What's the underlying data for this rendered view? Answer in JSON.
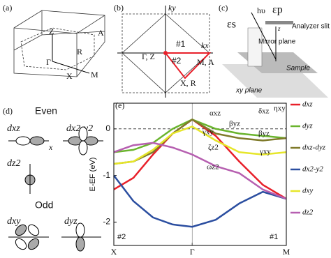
{
  "panels": {
    "a": {
      "label": "(a)",
      "points": [
        "Z",
        "A",
        "R",
        "Γ",
        "X",
        "M"
      ]
    },
    "b": {
      "label": "(b)",
      "axes": [
        "ky",
        "kx"
      ],
      "paths": [
        "#1",
        "#2"
      ],
      "points": [
        "Γ, Z",
        "M, A",
        "X, R"
      ]
    },
    "c": {
      "label": "(c)",
      "texts": [
        "hυ",
        "εp",
        "εs",
        "z",
        "Analyzer slit",
        "Mirror plane",
        "Sample",
        "xy plane"
      ]
    },
    "d": {
      "label": "(d)",
      "even": "Even",
      "odd": "Odd",
      "orbitals": [
        "dxz",
        "dx2-y2",
        "dz2",
        "dxy",
        "dyz"
      ],
      "axis": "x"
    }
  },
  "chart_data": {
    "type": "line",
    "panel_label": "(e)",
    "ylabel": "E-EF (eV)",
    "x": [
      0,
      0.25,
      0.5,
      0.75,
      1,
      1.3,
      1.6,
      1.9,
      2.2
    ],
    "xlim": [
      0,
      2.2
    ],
    "xticks": [
      {
        "value": 0,
        "label": "X"
      },
      {
        "value": 1,
        "label": "Γ"
      },
      {
        "value": 2.2,
        "label": "M"
      }
    ],
    "ylim": [
      -2.5,
      0.55
    ],
    "yticks": [
      -2,
      -1,
      0
    ],
    "reference_lines": {
      "y": 0,
      "x": 1
    },
    "series": [
      {
        "name": "dxz",
        "color": "#e8202a",
        "values": [
          -1.3,
          -1.05,
          -0.55,
          -0.1,
          0.2,
          -0.15,
          -0.7,
          -1.2,
          -1.5
        ]
      },
      {
        "name": "dyz",
        "color": "#6ab42d",
        "values": [
          -0.5,
          -0.45,
          -0.3,
          0.0,
          0.2,
          0.0,
          -0.1,
          -0.15,
          -0.2
        ]
      },
      {
        "name": "dxz-dyz",
        "color": "#7f7a2a",
        "values": [
          -0.75,
          -0.7,
          -0.5,
          -0.1,
          0.2,
          -0.1,
          -0.2,
          -0.25,
          -0.2
        ]
      },
      {
        "name": "dx2-y2",
        "color": "#2b4ea0",
        "values": [
          -1.0,
          -1.55,
          -1.9,
          -2.05,
          -2.1,
          -1.95,
          -1.6,
          -1.35,
          -1.5
        ]
      },
      {
        "name": "dxy",
        "color": "#e6e62a",
        "values": [
          -0.75,
          -0.7,
          -0.45,
          -0.1,
          0.05,
          -0.25,
          -0.5,
          -0.55,
          -0.5
        ]
      },
      {
        "name": "dz2",
        "color": "#b65fb0",
        "values": [
          -0.5,
          -0.35,
          -0.3,
          -0.4,
          -0.55,
          -0.8,
          -0.95,
          -1.3,
          -1.5
        ]
      }
    ],
    "annotations": [
      "αxz",
      "βyz",
      "γxy",
      "ζz2",
      "ωz2",
      "δxz",
      "ηxy",
      "βyz",
      "γxy",
      "#2",
      "#1"
    ]
  }
}
